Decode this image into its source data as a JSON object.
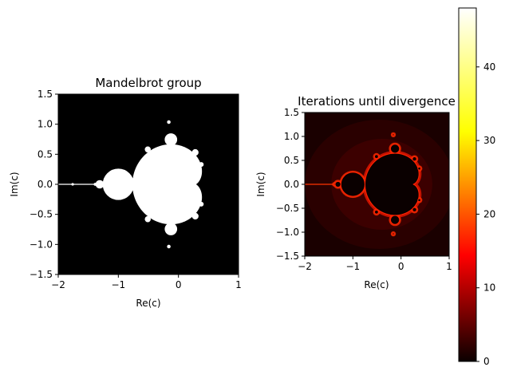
{
  "chart_data": [
    {
      "type": "heatmap",
      "title": "Mandelbrot group",
      "xlabel": "Re(c)",
      "ylabel": "Im(c)",
      "xlim": [
        -2,
        1
      ],
      "ylim": [
        -1.5,
        1.5
      ],
      "xticks": [
        "−2",
        "−1",
        "0",
        "1"
      ],
      "yticks": [
        "1.5",
        "1.0",
        "0.5",
        "0.0",
        "−0.5",
        "−1.0",
        "−1.5"
      ],
      "colormap": "binary (black outside, white inside the set)",
      "colors": {
        "inside": "#ffffff",
        "outside": "#000000"
      }
    },
    {
      "type": "heatmap",
      "title": "Iterations until divergence",
      "xlabel": "Re(c)",
      "ylabel": "Im(c)",
      "xlim": [
        -2,
        1
      ],
      "ylim": [
        -1.5,
        1.5
      ],
      "xticks": [
        "−2",
        "−1",
        "0",
        "1"
      ],
      "yticks": [
        "1.5",
        "1.0",
        "0.5",
        "0.0",
        "−0.5",
        "−1.0",
        "−1.5"
      ],
      "colormap": "hot",
      "colorbar": {
        "range": [
          0,
          48
        ],
        "ticks": [
          "0",
          "10",
          "20",
          "30",
          "40"
        ]
      }
    }
  ]
}
